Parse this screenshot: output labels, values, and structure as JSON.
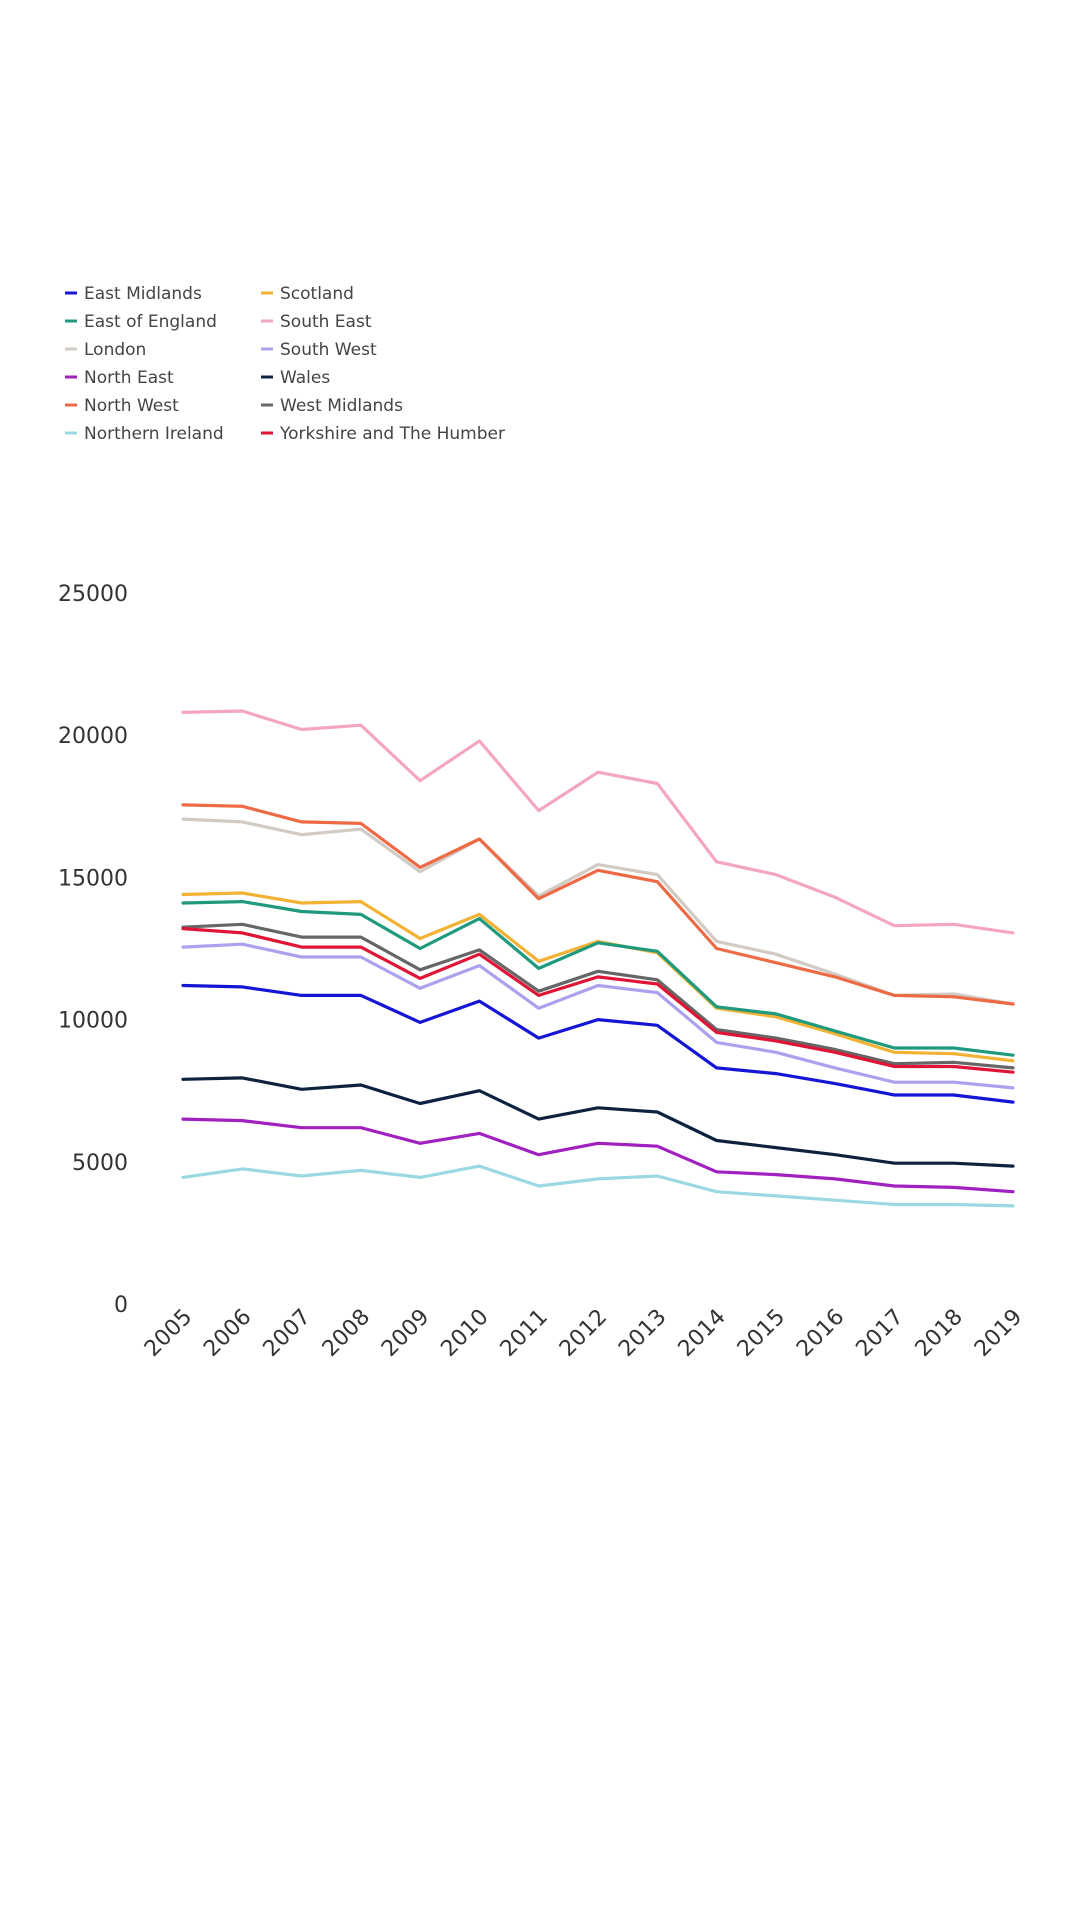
{
  "chart_data": {
    "type": "line",
    "title": "",
    "xlabel": "",
    "ylabel": "",
    "grid": false,
    "legend_position": "top-left",
    "ylim": [
      0,
      25000
    ],
    "y_ticks": [
      0,
      5000,
      10000,
      15000,
      20000,
      25000
    ],
    "x": [
      "2005",
      "2006",
      "2007",
      "2008",
      "2009",
      "2010",
      "2011",
      "2012",
      "2013",
      "2014",
      "2015",
      "2016",
      "2017",
      "2018",
      "2019"
    ],
    "series": [
      {
        "name": "East Midlands",
        "color": "#1515d6",
        "values": [
          11200,
          11150,
          10850,
          10850,
          9900,
          10650,
          9350,
          10000,
          9800,
          8300,
          8100,
          7750,
          7350,
          7350,
          7100
        ]
      },
      {
        "name": "East of England",
        "color": "#1f9a7e",
        "values": [
          14100,
          14150,
          13800,
          13700,
          12500,
          13550,
          11800,
          12700,
          12400,
          10450,
          10200,
          9600,
          9000,
          9000,
          8750
        ]
      },
      {
        "name": "London",
        "color": "#d2cbc4",
        "values": [
          17050,
          16950,
          16500,
          16700,
          15200,
          16350,
          14350,
          15450,
          15100,
          12750,
          12300,
          11600,
          10850,
          10900,
          10550
        ]
      },
      {
        "name": "North East",
        "color": "#a020c0",
        "values": [
          6500,
          6450,
          6200,
          6200,
          5650,
          6000,
          5250,
          5650,
          5550,
          4650,
          4550,
          4400,
          4150,
          4100,
          3950
        ]
      },
      {
        "name": "North West",
        "color": "#ee6a45",
        "values": [
          17550,
          17500,
          16950,
          16900,
          15350,
          16350,
          14250,
          15250,
          14850,
          12500,
          12000,
          11500,
          10850,
          10800,
          10550
        ]
      },
      {
        "name": "Northern Ireland",
        "color": "#9ad8e2",
        "values": [
          4450,
          4750,
          4500,
          4700,
          4450,
          4850,
          4150,
          4400,
          4500,
          3950,
          3800,
          3650,
          3500,
          3500,
          3450
        ]
      },
      {
        "name": "Scotland",
        "color": "#f2b233",
        "values": [
          14400,
          14450,
          14100,
          14150,
          12850,
          13700,
          12050,
          12750,
          12350,
          10400,
          10100,
          9500,
          8850,
          8800,
          8550
        ]
      },
      {
        "name": "South East",
        "color": "#f4a6bc",
        "values": [
          20800,
          20850,
          20200,
          20350,
          18400,
          19800,
          17350,
          18700,
          18300,
          15550,
          15100,
          14300,
          13300,
          13350,
          13050
        ]
      },
      {
        "name": "South West",
        "color": "#aaa2ee",
        "values": [
          12550,
          12650,
          12200,
          12200,
          11100,
          11900,
          10400,
          11200,
          10950,
          9200,
          8850,
          8300,
          7800,
          7800,
          7600
        ]
      },
      {
        "name": "Wales",
        "color": "#0e2240",
        "values": [
          7900,
          7950,
          7550,
          7700,
          7050,
          7500,
          6500,
          6900,
          6750,
          5750,
          5500,
          5250,
          4950,
          4950,
          4850
        ]
      },
      {
        "name": "West Midlands",
        "color": "#666666",
        "values": [
          13250,
          13350,
          12900,
          12900,
          11750,
          12450,
          11000,
          11700,
          11400,
          9650,
          9350,
          8950,
          8450,
          8500,
          8300
        ]
      },
      {
        "name": "Yorkshire and The Humber",
        "color": "#e01535",
        "values": [
          13200,
          13050,
          12550,
          12550,
          11450,
          12300,
          10850,
          11500,
          11250,
          9550,
          9250,
          8850,
          8350,
          8350,
          8150
        ]
      }
    ]
  }
}
